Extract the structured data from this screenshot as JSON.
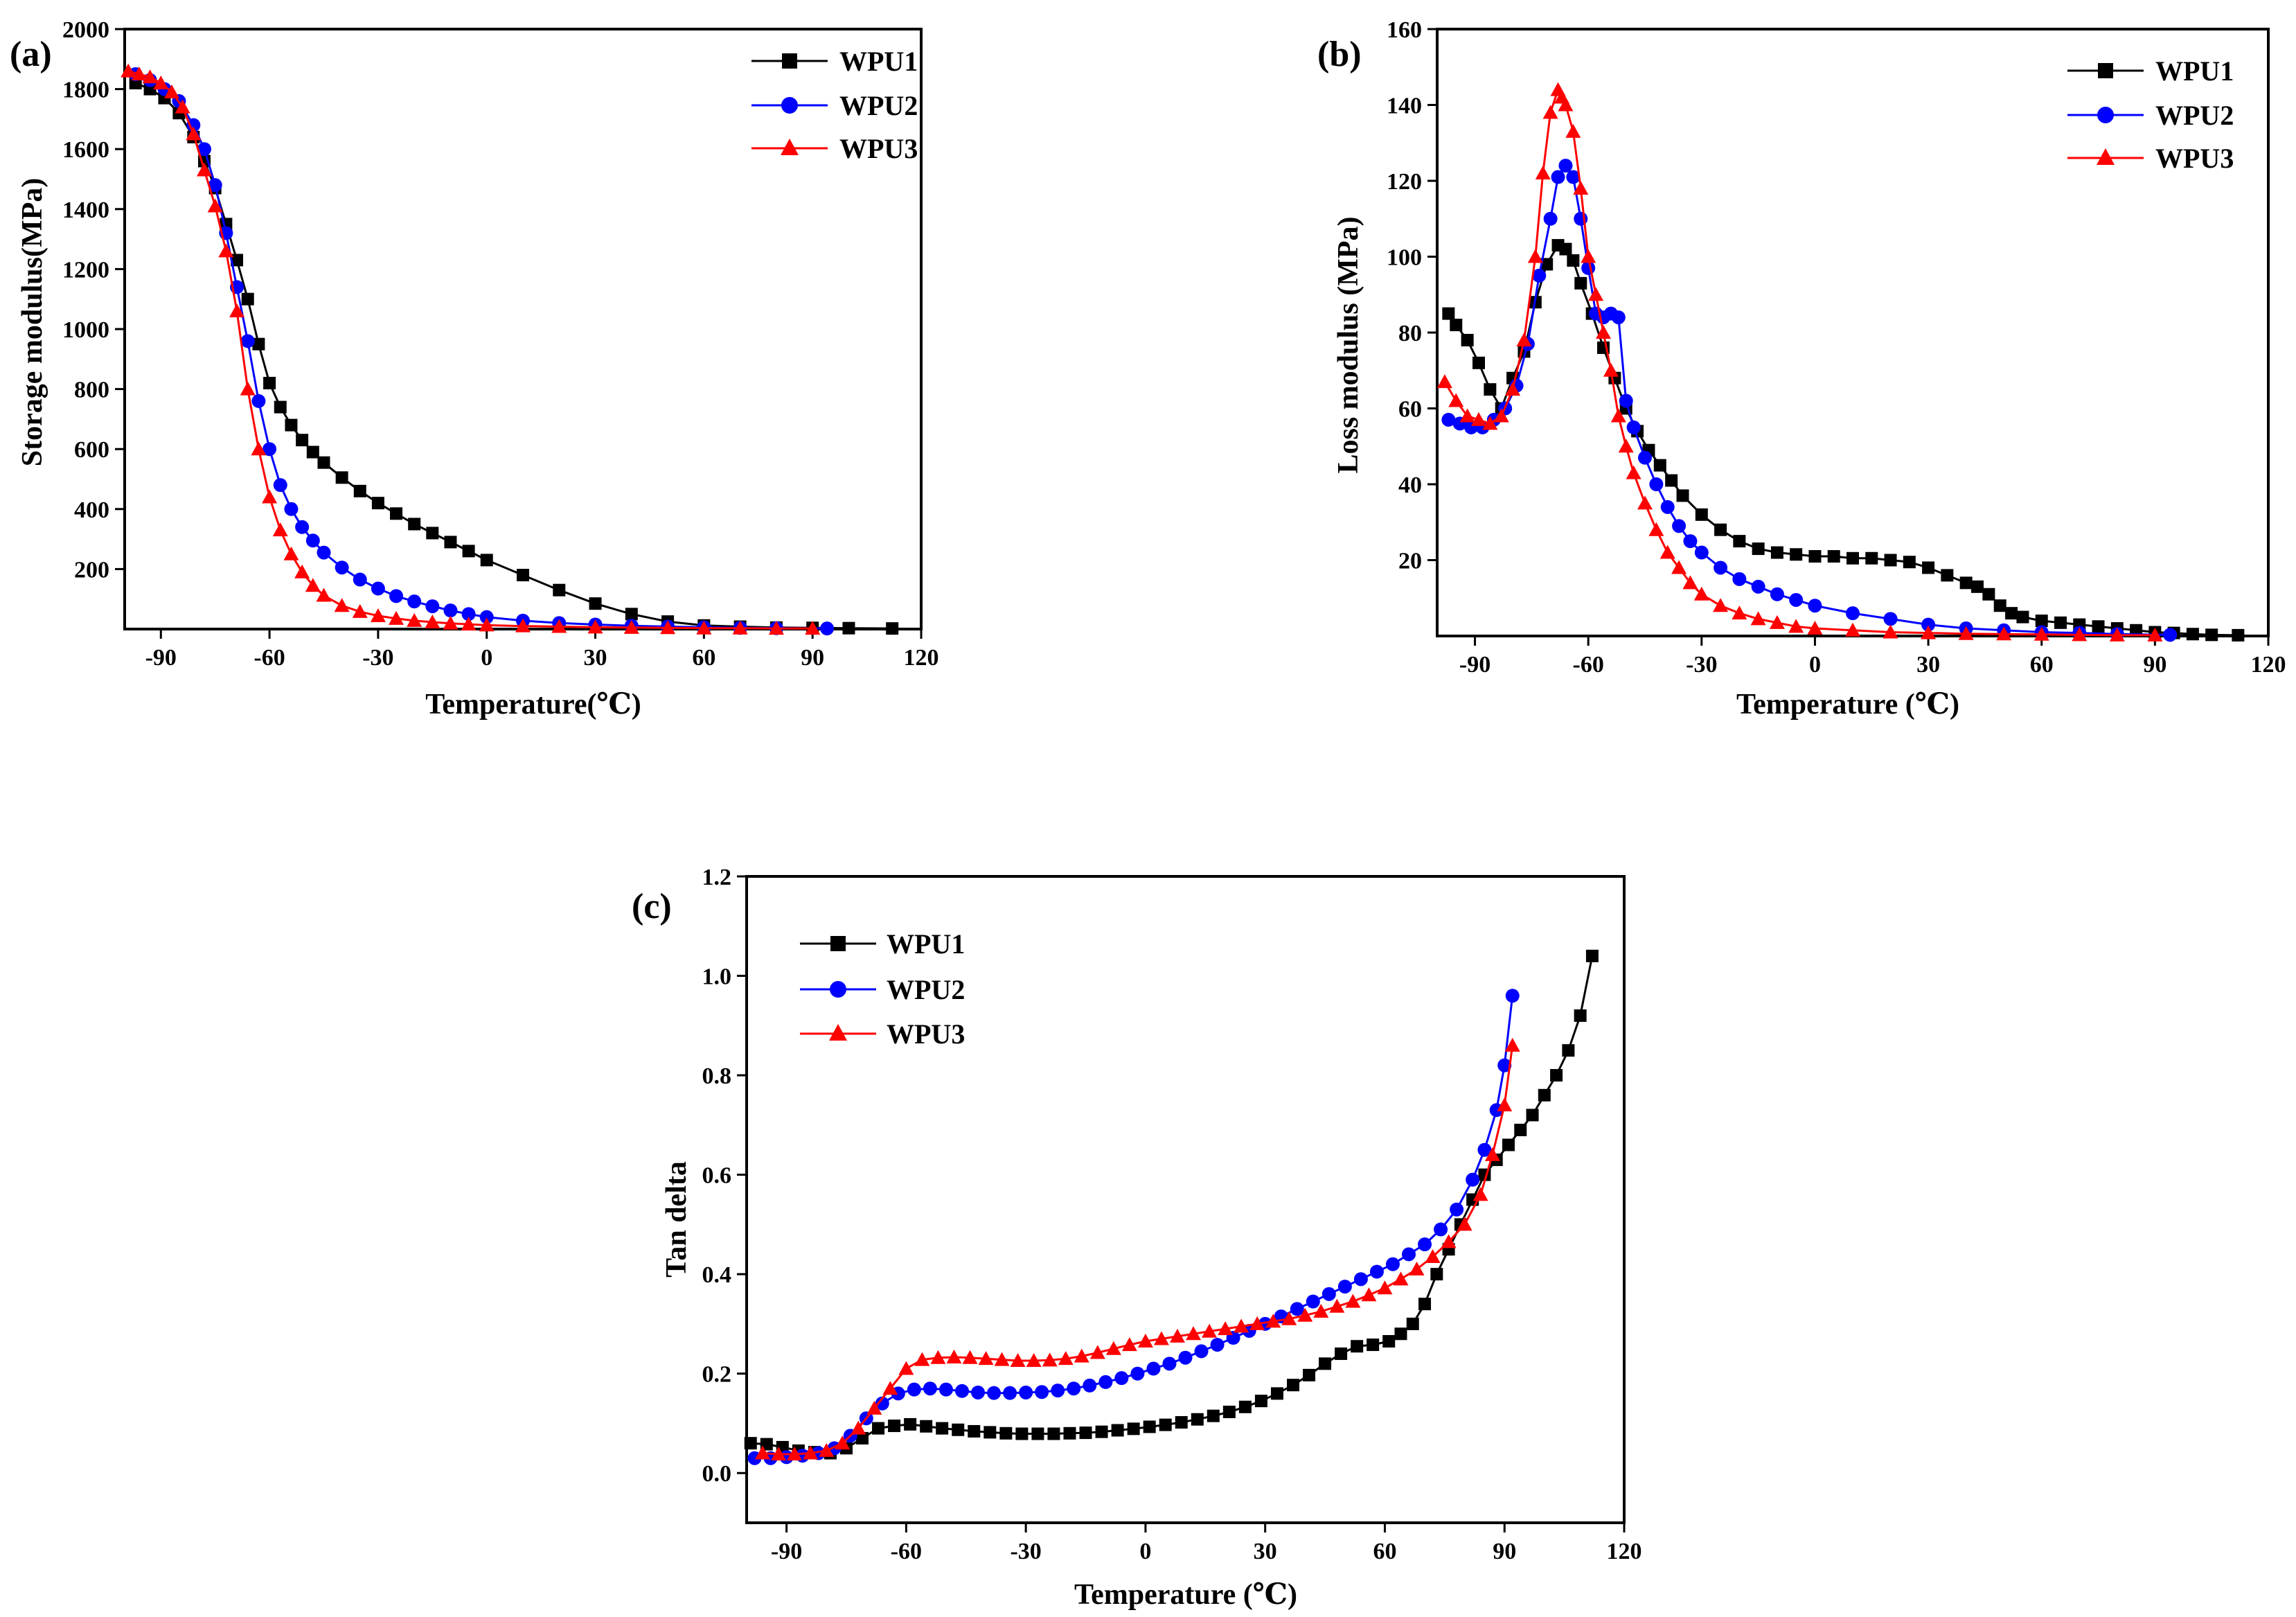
{
  "chart_data": [
    {
      "type": "line",
      "panel_label": "(a)",
      "xlabel": "Temperature(℃)",
      "ylabel": "Storage modulus(MPa)",
      "xlim": [
        -100,
        120
      ],
      "ylim": [
        0,
        2000
      ],
      "xticks": [
        -90,
        -60,
        -30,
        0,
        30,
        60,
        90,
        120
      ],
      "yticks": [
        200,
        400,
        600,
        800,
        1000,
        1200,
        1400,
        1600,
        1800,
        2000
      ],
      "legend_position": "top-right",
      "series": [
        {
          "name": "WPU1",
          "color": "#000000",
          "marker": "square",
          "x": [
            -97,
            -93,
            -89,
            -85,
            -81,
            -78,
            -75,
            -72,
            -69,
            -66,
            -63,
            -60,
            -57,
            -54,
            -51,
            -48,
            -45,
            -40,
            -35,
            -30,
            -25,
            -20,
            -15,
            -10,
            -5,
            0,
            10,
            20,
            30,
            40,
            50,
            60,
            70,
            80,
            90,
            100,
            112
          ],
          "y": [
            1820,
            1800,
            1770,
            1720,
            1640,
            1560,
            1470,
            1350,
            1230,
            1100,
            950,
            820,
            740,
            680,
            630,
            590,
            555,
            505,
            460,
            420,
            385,
            350,
            320,
            290,
            260,
            230,
            180,
            130,
            85,
            50,
            25,
            12,
            8,
            5,
            4,
            3,
            2
          ]
        },
        {
          "name": "WPU2",
          "color": "#0000ff",
          "marker": "circle",
          "x": [
            -97,
            -93,
            -89,
            -85,
            -81,
            -78,
            -75,
            -72,
            -69,
            -66,
            -63,
            -60,
            -57,
            -54,
            -51,
            -48,
            -45,
            -40,
            -35,
            -30,
            -25,
            -20,
            -15,
            -10,
            -5,
            0,
            10,
            20,
            30,
            40,
            50,
            60,
            70,
            80,
            94
          ],
          "y": [
            1850,
            1830,
            1800,
            1760,
            1680,
            1600,
            1480,
            1320,
            1140,
            960,
            760,
            600,
            480,
            400,
            340,
            295,
            255,
            205,
            165,
            135,
            110,
            92,
            76,
            62,
            50,
            40,
            28,
            20,
            15,
            11,
            8,
            6,
            4,
            3,
            2
          ]
        },
        {
          "name": "WPU3",
          "color": "#ff0000",
          "marker": "triangle",
          "x": [
            -99,
            -96,
            -93,
            -90,
            -87,
            -84,
            -81,
            -78,
            -75,
            -72,
            -69,
            -66,
            -63,
            -60,
            -57,
            -54,
            -51,
            -48,
            -45,
            -40,
            -35,
            -30,
            -25,
            -20,
            -15,
            -10,
            -5,
            0,
            10,
            20,
            30,
            40,
            50,
            60,
            70,
            80,
            90
          ],
          "y": [
            1860,
            1850,
            1840,
            1820,
            1790,
            1740,
            1650,
            1530,
            1410,
            1260,
            1060,
            800,
            600,
            440,
            330,
            250,
            190,
            145,
            112,
            78,
            58,
            44,
            35,
            28,
            23,
            19,
            16,
            13,
            10,
            8,
            6,
            5,
            4,
            3,
            3,
            2,
            2
          ]
        }
      ]
    },
    {
      "type": "line",
      "panel_label": "(b)",
      "xlabel": "Temperature (℃)",
      "ylabel": "Loss modulus (MPa)",
      "xlim": [
        -100,
        120
      ],
      "ylim": [
        0,
        160
      ],
      "xticks": [
        -90,
        -60,
        -30,
        0,
        30,
        60,
        90,
        120
      ],
      "yticks": [
        20,
        40,
        60,
        80,
        100,
        120,
        140,
        160
      ],
      "legend_position": "top-right",
      "series": [
        {
          "name": "WPU1",
          "color": "#000000",
          "marker": "square",
          "x": [
            -97,
            -95,
            -92,
            -89,
            -86,
            -83,
            -80,
            -77,
            -74,
            -71,
            -68,
            -66,
            -64,
            -62,
            -59,
            -56,
            -53,
            -50,
            -47,
            -44,
            -41,
            -38,
            -35,
            -30,
            -25,
            -20,
            -15,
            -10,
            -5,
            0,
            5,
            10,
            15,
            20,
            25,
            30,
            35,
            40,
            43,
            46,
            49,
            52,
            55,
            60,
            65,
            70,
            75,
            80,
            85,
            90,
            95,
            100,
            105,
            112
          ],
          "y": [
            85,
            82,
            78,
            72,
            65,
            60,
            68,
            75,
            88,
            98,
            103,
            102,
            99,
            93,
            85,
            76,
            68,
            60,
            54,
            49,
            45,
            41,
            37,
            32,
            28,
            25,
            23,
            22,
            21.5,
            21,
            21,
            20.5,
            20.5,
            20,
            19.5,
            18,
            16,
            14,
            13,
            11,
            8,
            6,
            5,
            4,
            3.5,
            3,
            2.5,
            2,
            1.5,
            1,
            0.8,
            0.5,
            0.3,
            0.2
          ]
        },
        {
          "name": "WPU2",
          "color": "#0000ff",
          "marker": "circle",
          "x": [
            -97,
            -94,
            -91,
            -88,
            -85,
            -82,
            -79,
            -76,
            -73,
            -70,
            -68,
            -66,
            -64,
            -62,
            -60,
            -58,
            -56,
            -54,
            -52,
            -50,
            -48,
            -45,
            -42,
            -39,
            -36,
            -33,
            -30,
            -25,
            -20,
            -15,
            -10,
            -5,
            0,
            10,
            20,
            30,
            40,
            50,
            60,
            70,
            80,
            94
          ],
          "y": [
            57,
            56,
            55,
            55,
            57,
            60,
            66,
            77,
            95,
            110,
            121,
            124,
            121,
            110,
            97,
            85,
            84,
            85,
            84,
            62,
            55,
            47,
            40,
            34,
            29,
            25,
            22,
            18,
            15,
            13,
            11,
            9.5,
            8,
            6,
            4.5,
            3,
            2,
            1.5,
            1,
            0.8,
            0.5,
            0.3
          ]
        },
        {
          "name": "WPU3",
          "color": "#ff0000",
          "marker": "triangle",
          "x": [
            -98,
            -95,
            -92,
            -89,
            -86,
            -83,
            -80,
            -77,
            -74,
            -72,
            -70,
            -68,
            -67,
            -66,
            -64,
            -62,
            -60,
            -58,
            -56,
            -54,
            -52,
            -50,
            -48,
            -45,
            -42,
            -39,
            -36,
            -33,
            -30,
            -25,
            -20,
            -15,
            -10,
            -5,
            0,
            10,
            20,
            30,
            40,
            50,
            60,
            70,
            80,
            90
          ],
          "y": [
            67,
            62,
            58,
            57,
            56,
            58,
            65,
            78,
            100,
            122,
            138,
            144,
            142,
            140,
            133,
            118,
            100,
            90,
            80,
            70,
            58,
            50,
            43,
            35,
            28,
            22,
            18,
            14,
            11,
            8,
            6,
            4.5,
            3.5,
            2.5,
            2,
            1.5,
            1,
            0.8,
            0.6,
            0.5,
            0.4,
            0.3,
            0.2,
            0.2
          ]
        }
      ]
    },
    {
      "type": "line",
      "panel_label": "(c)",
      "xlabel": "Temperature (℃)",
      "ylabel": "Tan delta",
      "xlim": [
        -100,
        120
      ],
      "ylim": [
        -0.1,
        1.2
      ],
      "xticks": [
        -90,
        -60,
        -30,
        0,
        30,
        60,
        90,
        120
      ],
      "yticks": [
        0.0,
        0.2,
        0.4,
        0.6,
        0.8,
        1.0,
        1.2
      ],
      "legend_position": "top-left",
      "series": [
        {
          "name": "WPU1",
          "color": "#000000",
          "marker": "square",
          "x": [
            -99,
            -95,
            -91,
            -87,
            -83,
            -79,
            -75,
            -71,
            -67,
            -63,
            -59,
            -55,
            -51,
            -47,
            -43,
            -39,
            -35,
            -31,
            -27,
            -23,
            -19,
            -15,
            -11,
            -7,
            -3,
            1,
            5,
            9,
            13,
            17,
            21,
            25,
            29,
            33,
            37,
            41,
            45,
            49,
            53,
            57,
            61,
            64,
            67,
            70,
            73,
            76,
            79,
            82,
            85,
            88,
            91,
            94,
            97,
            100,
            103,
            106,
            109,
            112
          ],
          "y": [
            0.06,
            0.058,
            0.052,
            0.045,
            0.042,
            0.04,
            0.05,
            0.07,
            0.09,
            0.095,
            0.098,
            0.094,
            0.09,
            0.087,
            0.084,
            0.082,
            0.08,
            0.079,
            0.079,
            0.079,
            0.08,
            0.081,
            0.083,
            0.086,
            0.089,
            0.093,
            0.097,
            0.102,
            0.108,
            0.115,
            0.123,
            0.133,
            0.145,
            0.16,
            0.177,
            0.197,
            0.22,
            0.24,
            0.255,
            0.258,
            0.265,
            0.28,
            0.3,
            0.34,
            0.4,
            0.45,
            0.5,
            0.55,
            0.6,
            0.63,
            0.66,
            0.69,
            0.72,
            0.76,
            0.8,
            0.85,
            0.92,
            1.04
          ]
        },
        {
          "name": "WPU2",
          "color": "#0000ff",
          "marker": "circle",
          "x": [
            -98,
            -94,
            -90,
            -86,
            -82,
            -78,
            -74,
            -70,
            -66,
            -62,
            -58,
            -54,
            -50,
            -46,
            -42,
            -38,
            -34,
            -30,
            -26,
            -22,
            -18,
            -14,
            -10,
            -6,
            -2,
            2,
            6,
            10,
            14,
            18,
            22,
            26,
            30,
            34,
            38,
            42,
            46,
            50,
            54,
            58,
            62,
            66,
            70,
            74,
            78,
            82,
            85,
            88,
            90,
            92
          ],
          "y": [
            0.03,
            0.03,
            0.032,
            0.035,
            0.04,
            0.05,
            0.075,
            0.11,
            0.14,
            0.16,
            0.168,
            0.17,
            0.168,
            0.165,
            0.162,
            0.161,
            0.161,
            0.162,
            0.163,
            0.166,
            0.17,
            0.176,
            0.183,
            0.191,
            0.2,
            0.21,
            0.22,
            0.232,
            0.245,
            0.258,
            0.272,
            0.286,
            0.3,
            0.315,
            0.33,
            0.345,
            0.36,
            0.375,
            0.39,
            0.405,
            0.42,
            0.44,
            0.46,
            0.49,
            0.53,
            0.59,
            0.65,
            0.73,
            0.82,
            0.96
          ]
        },
        {
          "name": "WPU3",
          "color": "#ff0000",
          "marker": "triangle",
          "x": [
            -96,
            -92,
            -88,
            -84,
            -80,
            -76,
            -72,
            -68,
            -64,
            -60,
            -56,
            -52,
            -48,
            -44,
            -40,
            -36,
            -32,
            -28,
            -24,
            -20,
            -16,
            -12,
            -8,
            -4,
            0,
            4,
            8,
            12,
            16,
            20,
            24,
            28,
            32,
            36,
            40,
            44,
            48,
            52,
            56,
            60,
            64,
            68,
            72,
            76,
            80,
            84,
            87,
            90,
            92
          ],
          "y": [
            0.04,
            0.038,
            0.038,
            0.04,
            0.045,
            0.06,
            0.09,
            0.13,
            0.17,
            0.21,
            0.228,
            0.232,
            0.233,
            0.232,
            0.23,
            0.228,
            0.226,
            0.226,
            0.227,
            0.23,
            0.235,
            0.242,
            0.25,
            0.258,
            0.265,
            0.27,
            0.275,
            0.28,
            0.285,
            0.29,
            0.295,
            0.3,
            0.305,
            0.31,
            0.317,
            0.325,
            0.335,
            0.345,
            0.358,
            0.372,
            0.39,
            0.41,
            0.435,
            0.465,
            0.5,
            0.56,
            0.64,
            0.74,
            0.86
          ]
        }
      ]
    }
  ]
}
